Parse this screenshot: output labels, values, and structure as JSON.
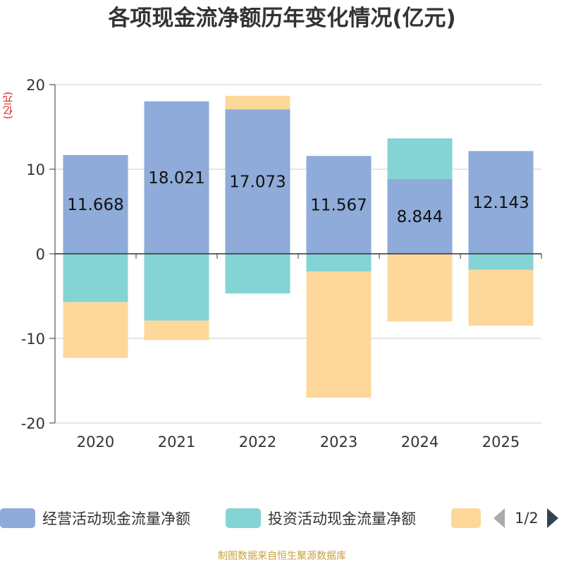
{
  "chart_data": {
    "type": "bar",
    "stacked": true,
    "title": "各项现金流净额历年变化情况(亿元)",
    "unit_label": "(亿元)",
    "categories": [
      "2020",
      "2021",
      "2022",
      "2023",
      "2024",
      "2025"
    ],
    "ylim": [
      -20,
      20
    ],
    "yticks": [
      20,
      10,
      0,
      -10,
      -20
    ],
    "grid": true,
    "series": [
      {
        "name": "经营活动现金流量净额",
        "color": "#8eabd9",
        "values": [
          11.668,
          18.021,
          17.073,
          11.567,
          8.844,
          12.143
        ],
        "labels": [
          "11.668",
          "18.021",
          "17.073",
          "11.567",
          "8.844",
          "12.143"
        ]
      },
      {
        "name": "投资活动现金流量净额",
        "color": "#84d4d6",
        "values": [
          -5.7,
          -7.9,
          -4.7,
          -2.1,
          4.8,
          -1.9
        ]
      },
      {
        "name": "",
        "color": "#fdd89a",
        "values": [
          -6.6,
          -2.3,
          1.6,
          -14.9,
          -8.0,
          -6.6
        ]
      }
    ],
    "legend_page": "1/2",
    "legend_position": "bottom"
  },
  "footer": {
    "source": "制图数据来自恒生聚源数据库"
  }
}
